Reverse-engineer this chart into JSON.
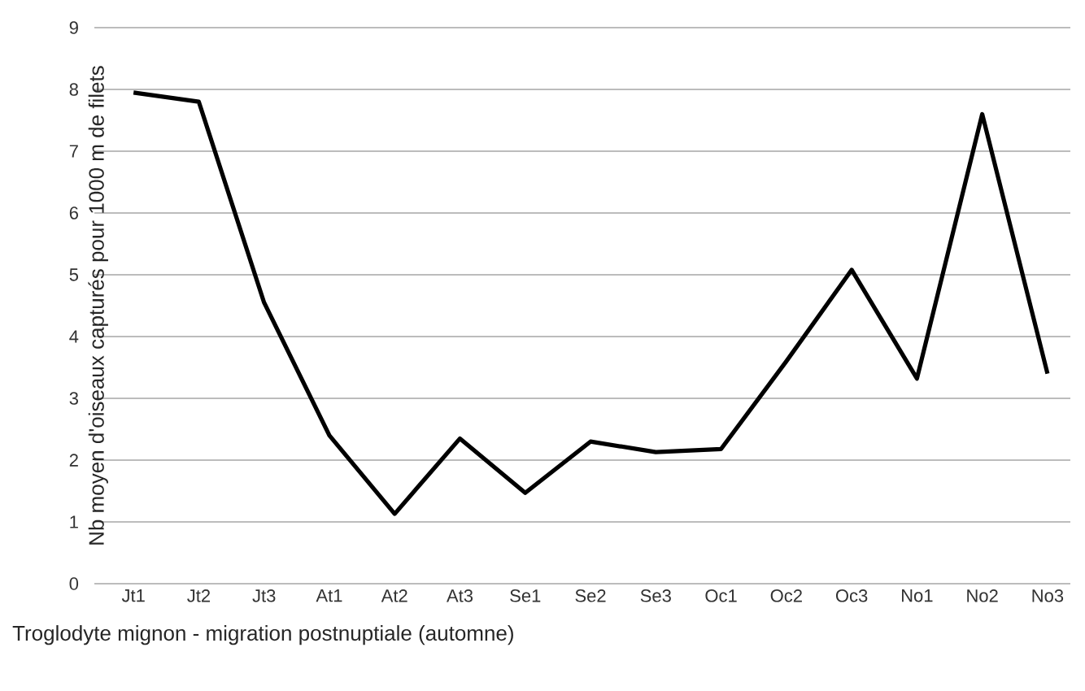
{
  "chart_data": {
    "type": "line",
    "xlabel": "Troglodyte mignon - migration postnuptiale (automne)",
    "ylabel": "Nb moyen d'oiseaux capturés pour 1000 m de filets",
    "categories": [
      "Jt1",
      "Jt2",
      "Jt3",
      "At1",
      "At2",
      "At3",
      "Se1",
      "Se2",
      "Se3",
      "Oc1",
      "Oc2",
      "Oc3",
      "No1",
      "No2",
      "No3"
    ],
    "series": [
      {
        "color": "#000000",
        "values": [
          7.95,
          7.8,
          4.55,
          2.4,
          1.13,
          2.35,
          1.47,
          2.3,
          2.13,
          2.18,
          3.6,
          5.08,
          3.32,
          7.6,
          3.4
        ]
      }
    ],
    "ylim": [
      0,
      9
    ],
    "yticks": [
      0,
      1,
      2,
      3,
      4,
      5,
      6,
      7,
      8,
      9
    ],
    "grid": "y"
  }
}
